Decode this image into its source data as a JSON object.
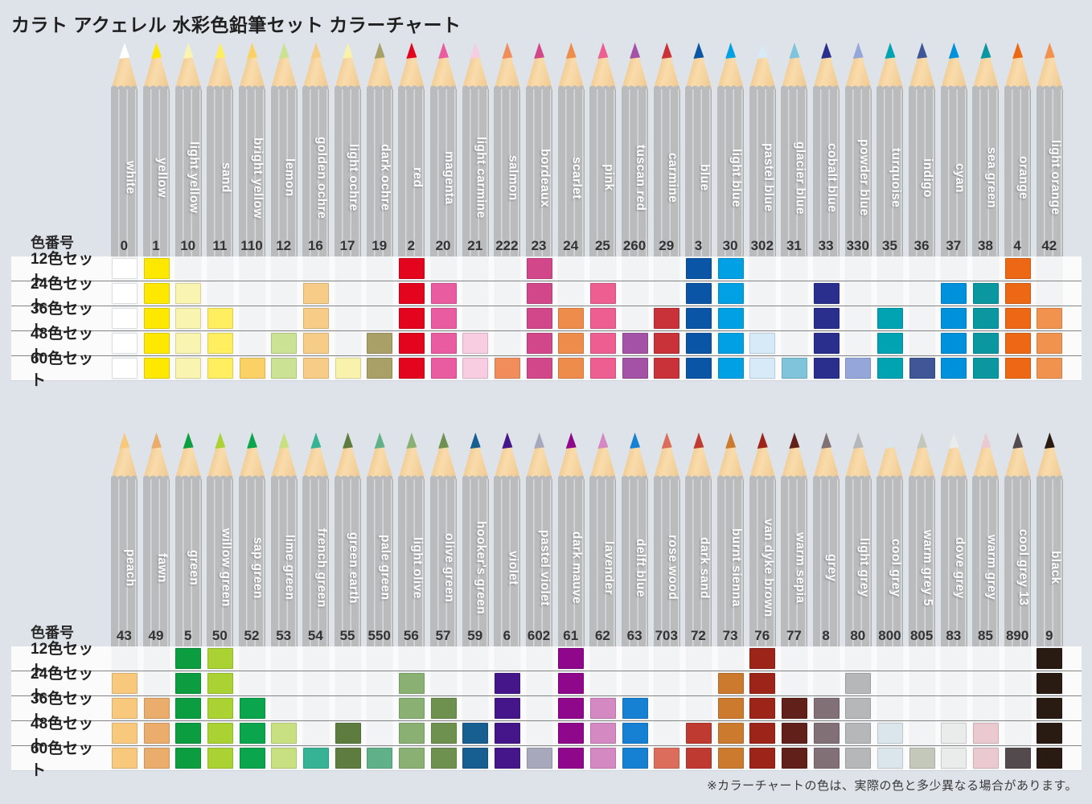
{
  "title": "カラト アクェレル 水彩色鉛筆セット カラーチャート",
  "footnote": "※カラーチャートの色は、実際の色と多少異なる場合があります。",
  "chart_data": {
    "type": "table",
    "title": "カラト アクェレル 水彩色鉛筆セット カラーチャート",
    "column_header_label": "色番号",
    "legend": "cell filled = color included in that set; min_set is the smallest set containing the color",
    "set_rows": [
      {
        "size": 12,
        "label": "12色セット"
      },
      {
        "size": 24,
        "label": "24色セット"
      },
      {
        "size": 36,
        "label": "36色セット"
      },
      {
        "size": 48,
        "label": "48色セット"
      },
      {
        "size": 60,
        "label": "60色セット"
      }
    ],
    "groups": [
      {
        "name": "top",
        "pencils": [
          {
            "name": "white",
            "number": "0",
            "hex": "#FFFFFF",
            "min_set": 12
          },
          {
            "name": "yellow",
            "number": "1",
            "hex": "#FFE800",
            "min_set": 12
          },
          {
            "name": "light yellow",
            "number": "10",
            "hex": "#F9F4B0",
            "min_set": 24
          },
          {
            "name": "sand",
            "number": "11",
            "hex": "#FFEE60",
            "min_set": 36
          },
          {
            "name": "bright yellow",
            "number": "110",
            "hex": "#FBD166",
            "min_set": 60
          },
          {
            "name": "lemon",
            "number": "12",
            "hex": "#CBE294",
            "min_set": 48
          },
          {
            "name": "golden ochre",
            "number": "16",
            "hex": "#F6CC86",
            "min_set": 24
          },
          {
            "name": "light ochre",
            "number": "17",
            "hex": "#F8F2AC",
            "min_set": 60
          },
          {
            "name": "dark ochre",
            "number": "19",
            "hex": "#A9A067",
            "min_set": 48
          },
          {
            "name": "red",
            "number": "2",
            "hex": "#E3051E",
            "min_set": 12
          },
          {
            "name": "magenta",
            "number": "20",
            "hex": "#EA5CA0",
            "min_set": 24
          },
          {
            "name": "light carmine",
            "number": "21",
            "hex": "#F8CCE1",
            "min_set": 48
          },
          {
            "name": "salmon",
            "number": "222",
            "hex": "#F18C5B",
            "min_set": 60
          },
          {
            "name": "bordeaux",
            "number": "23",
            "hex": "#D2478A",
            "min_set": 12
          },
          {
            "name": "scarlet",
            "number": "24",
            "hex": "#EE8C4C",
            "min_set": 36
          },
          {
            "name": "pink",
            "number": "25",
            "hex": "#EC5F90",
            "min_set": 24
          },
          {
            "name": "tuscan red",
            "number": "260",
            "hex": "#A452A5",
            "min_set": 48
          },
          {
            "name": "carmine",
            "number": "29",
            "hex": "#C93239",
            "min_set": 36
          },
          {
            "name": "blue",
            "number": "3",
            "hex": "#0B55A6",
            "min_set": 12
          },
          {
            "name": "light blue",
            "number": "30",
            "hex": "#00A1E4",
            "min_set": 12
          },
          {
            "name": "pastel blue",
            "number": "302",
            "hex": "#D7EAF8",
            "min_set": 48
          },
          {
            "name": "glacier blue",
            "number": "31",
            "hex": "#7FC4DB",
            "min_set": 60
          },
          {
            "name": "cobalt blue",
            "number": "33",
            "hex": "#2A2F8E",
            "min_set": 24
          },
          {
            "name": "powder blue",
            "number": "330",
            "hex": "#95A6D9",
            "min_set": 60
          },
          {
            "name": "turquoise",
            "number": "35",
            "hex": "#00A3B2",
            "min_set": 36
          },
          {
            "name": "indigo",
            "number": "36",
            "hex": "#3F5796",
            "min_set": 60
          },
          {
            "name": "cyan",
            "number": "37",
            "hex": "#0091DD",
            "min_set": 24
          },
          {
            "name": "sea green",
            "number": "38",
            "hex": "#0A97A0",
            "min_set": 24
          },
          {
            "name": "orange",
            "number": "4",
            "hex": "#EC6815",
            "min_set": 12
          },
          {
            "name": "light orange",
            "number": "42",
            "hex": "#F1934E",
            "min_set": 36
          }
        ]
      },
      {
        "name": "bottom",
        "pencils": [
          {
            "name": "peach",
            "number": "43",
            "hex": "#F8C97C",
            "min_set": 24
          },
          {
            "name": "fawn",
            "number": "49",
            "hex": "#EAAD6C",
            "min_set": 36
          },
          {
            "name": "green",
            "number": "5",
            "hex": "#0C9D40",
            "min_set": 12
          },
          {
            "name": "willow green",
            "number": "50",
            "hex": "#AAD233",
            "min_set": 12
          },
          {
            "name": "sap green",
            "number": "52",
            "hex": "#0BA54D",
            "min_set": 36
          },
          {
            "name": "lime green",
            "number": "53",
            "hex": "#C9E081",
            "min_set": 48
          },
          {
            "name": "french green",
            "number": "54",
            "hex": "#36B295",
            "min_set": 60
          },
          {
            "name": "green earth",
            "number": "55",
            "hex": "#5E7C3D",
            "min_set": 48
          },
          {
            "name": "pale green",
            "number": "550",
            "hex": "#60B189",
            "min_set": 60
          },
          {
            "name": "light olive",
            "number": "56",
            "hex": "#8AB173",
            "min_set": 24
          },
          {
            "name": "olive green",
            "number": "57",
            "hex": "#6F9150",
            "min_set": 36
          },
          {
            "name": "hooker's green",
            "number": "59",
            "hex": "#175F90",
            "min_set": 48
          },
          {
            "name": "violet",
            "number": "6",
            "hex": "#45158A",
            "min_set": 24
          },
          {
            "name": "pastel violet",
            "number": "602",
            "hex": "#A8A8BC",
            "min_set": 60
          },
          {
            "name": "dark mauve",
            "number": "61",
            "hex": "#8F088C",
            "min_set": 12
          },
          {
            "name": "lavender",
            "number": "62",
            "hex": "#D489C3",
            "min_set": 36
          },
          {
            "name": "delft blue",
            "number": "63",
            "hex": "#1681D3",
            "min_set": 36
          },
          {
            "name": "rose wood",
            "number": "703",
            "hex": "#DC6C5B",
            "min_set": 60
          },
          {
            "name": "dark sand",
            "number": "72",
            "hex": "#BF3A31",
            "min_set": 48
          },
          {
            "name": "burnt sienna",
            "number": "73",
            "hex": "#CC7A2D",
            "min_set": 24
          },
          {
            "name": "van dyke brown",
            "number": "76",
            "hex": "#9D2418",
            "min_set": 12
          },
          {
            "name": "warm sepia",
            "number": "77",
            "hex": "#612019",
            "min_set": 36
          },
          {
            "name": "grey",
            "number": "8",
            "hex": "#827077",
            "min_set": 36
          },
          {
            "name": "light grey",
            "number": "80",
            "hex": "#B5B7B9",
            "min_set": 24
          },
          {
            "name": "cool grey",
            "number": "800",
            "hex": "#DBE5EC",
            "min_set": 48
          },
          {
            "name": "warm grey 5",
            "number": "805",
            "hex": "#C4C8BB",
            "min_set": 60
          },
          {
            "name": "dove grey",
            "number": "83",
            "hex": "#E9ECEA",
            "min_set": 48
          },
          {
            "name": "warm grey",
            "number": "85",
            "hex": "#EACAD0",
            "min_set": 48
          },
          {
            "name": "cool grey 13",
            "number": "890",
            "hex": "#534A4E",
            "min_set": 60
          },
          {
            "name": "black",
            "number": "9",
            "hex": "#291A12",
            "min_set": 12
          }
        ]
      }
    ]
  }
}
